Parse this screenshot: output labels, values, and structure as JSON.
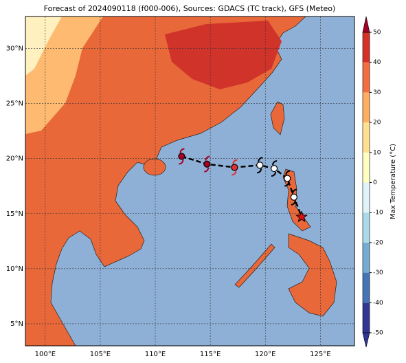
{
  "title": "Forecast of 2024090118 (f000-006), Sources: GDACS (TC track), GFS (Meteo)",
  "map": {
    "lonlim": [
      98.2,
      128.1
    ],
    "latlim": [
      3.0,
      32.9
    ],
    "lonticks": [
      {
        "value": 100,
        "label": "100°E"
      },
      {
        "value": 105,
        "label": "105°E"
      },
      {
        "value": 110,
        "label": "110°E"
      },
      {
        "value": 115,
        "label": "115°E"
      },
      {
        "value": 120,
        "label": "120°E"
      },
      {
        "value": 125,
        "label": "125°E"
      }
    ],
    "latticks": [
      {
        "value": 5,
        "label": "5°N"
      },
      {
        "value": 10,
        "label": "10°N"
      },
      {
        "value": 15,
        "label": "15°N"
      },
      {
        "value": 20,
        "label": "20°N"
      },
      {
        "value": 25,
        "label": "25°N"
      },
      {
        "value": 30,
        "label": "30°N"
      }
    ]
  },
  "colorbar": {
    "label": "Max Temperature (°C)",
    "lim": [
      -50,
      50
    ],
    "ticks": [
      -50,
      -40,
      -30,
      -20,
      -10,
      0,
      10,
      20,
      30,
      40,
      50
    ],
    "colors": [
      "#313695",
      "#4575b4",
      "#74add1",
      "#abd9e9",
      "#e0f3f8",
      "#ffffbf",
      "#fee090",
      "#fdae61",
      "#f46d43",
      "#d73027",
      "#a50026"
    ]
  },
  "track": [
    {
      "lon": 112.4,
      "lat": 20.2,
      "color": "#a50026"
    },
    {
      "lon": 114.7,
      "lat": 19.5,
      "color": "#a50026"
    },
    {
      "lon": 117.2,
      "lat": 19.2,
      "color": "#e03030"
    },
    {
      "lon": 119.5,
      "lat": 19.4,
      "color": "#ffffff"
    },
    {
      "lon": 120.8,
      "lat": 19.1,
      "color": "#ffffff"
    },
    {
      "lon": 122.0,
      "lat": 18.2,
      "color": "#ffffff"
    },
    {
      "lon": 122.6,
      "lat": 16.5,
      "color": "#ffffff"
    },
    {
      "lon": 123.3,
      "lat": 14.7,
      "color": "#e01010"
    }
  ]
}
